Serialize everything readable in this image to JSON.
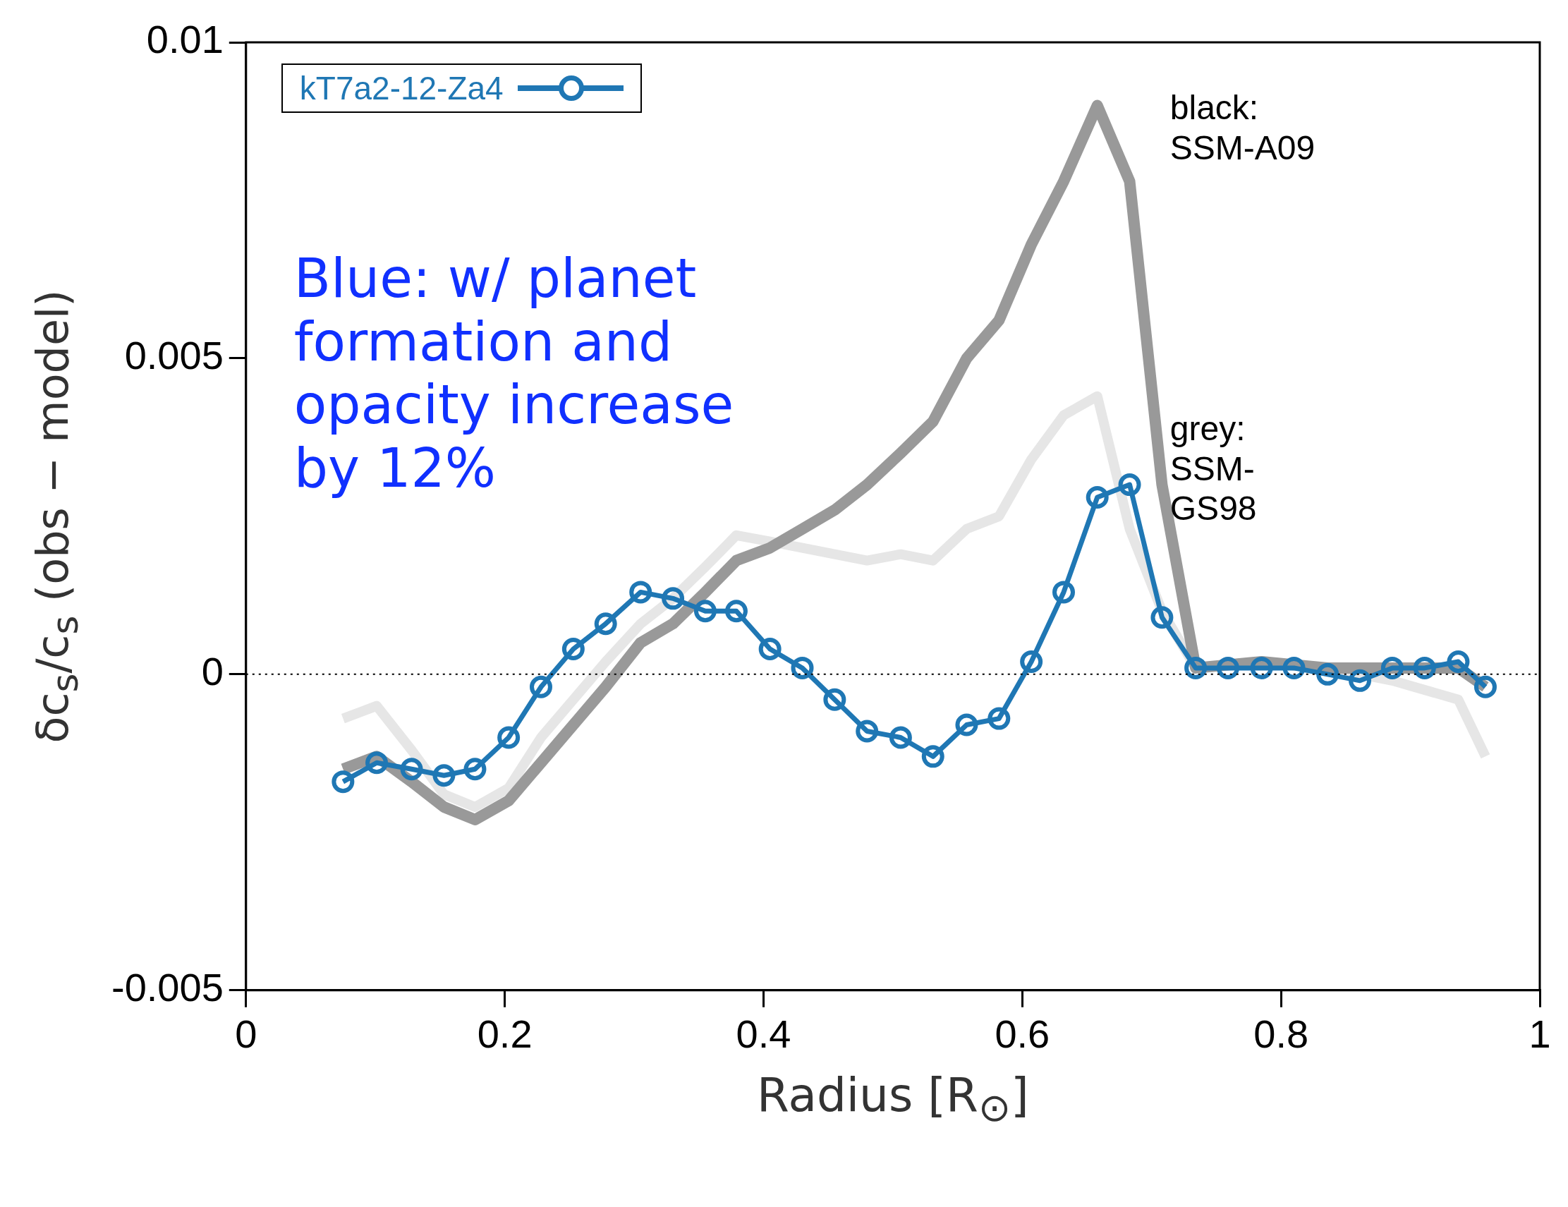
{
  "chart_data": {
    "type": "line",
    "xlabel": "Radius [R$_{⊙}$]",
    "ylabel": "δc$_{s}$/c$_{s}$ (obs − model)",
    "xlim": [
      0,
      1
    ],
    "xticks": [
      0,
      0.2,
      0.4,
      0.6,
      0.8,
      1
    ],
    "ylim": [
      -0.005,
      0.01
    ],
    "yticks": [
      -0.005,
      0,
      0.005,
      0.01
    ],
    "series": [
      {
        "color": "#e6e6e6",
        "marker": "none",
        "x": [
          0.075,
          0.101,
          0.128,
          0.153,
          0.177,
          0.203,
          0.228,
          0.253,
          0.278,
          0.305,
          0.33,
          0.355,
          0.379,
          0.405,
          0.43,
          0.455,
          0.48,
          0.506,
          0.531,
          0.557,
          0.582,
          0.607,
          0.632,
          0.658,
          0.683,
          0.708,
          0.734,
          0.785,
          0.836,
          0.886,
          0.937,
          0.958
        ],
        "values": [
          -0.0007,
          -0.0005,
          -0.0012,
          -0.0019,
          -0.0021,
          -0.0018,
          -0.001,
          -0.0004,
          0.0002,
          0.0008,
          0.0012,
          0.0017,
          0.0022,
          0.0021,
          0.002,
          0.0019,
          0.0018,
          0.0019,
          0.0018,
          0.0023,
          0.0025,
          0.0034,
          0.0041,
          0.0044,
          0.0023,
          0.001,
          0.0001,
          0.0002,
          0.0001,
          -0.0001,
          -0.0004,
          -0.0013
        ]
      },
      {
        "color": "#999999",
        "marker": "none",
        "x": [
          0.075,
          0.101,
          0.128,
          0.153,
          0.177,
          0.203,
          0.228,
          0.253,
          0.278,
          0.305,
          0.33,
          0.355,
          0.379,
          0.405,
          0.43,
          0.455,
          0.48,
          0.506,
          0.531,
          0.557,
          0.582,
          0.607,
          0.632,
          0.658,
          0.683,
          0.708,
          0.734,
          0.785,
          0.836,
          0.886,
          0.937,
          0.958
        ],
        "values": [
          -0.0015,
          -0.0013,
          -0.0017,
          -0.0021,
          -0.0023,
          -0.002,
          -0.0014,
          -0.0008,
          -0.0002,
          0.0005,
          0.0008,
          0.0013,
          0.0018,
          0.002,
          0.0023,
          0.0026,
          0.003,
          0.0035,
          0.004,
          0.005,
          0.0056,
          0.0068,
          0.0078,
          0.009,
          0.0078,
          0.003,
          0.0001,
          0.0002,
          0.0001,
          0.0001,
          0.0001,
          -0.0002
        ]
      },
      {
        "name": "kT7a2-12-Za4",
        "color": "#1f77b4",
        "marker": "circle",
        "x": [
          0.075,
          0.101,
          0.128,
          0.153,
          0.177,
          0.203,
          0.228,
          0.253,
          0.278,
          0.305,
          0.33,
          0.355,
          0.379,
          0.405,
          0.43,
          0.455,
          0.48,
          0.506,
          0.531,
          0.557,
          0.582,
          0.607,
          0.632,
          0.658,
          0.683,
          0.708,
          0.734,
          0.759,
          0.785,
          0.81,
          0.836,
          0.861,
          0.886,
          0.911,
          0.937,
          0.958
        ],
        "values": [
          -0.0017,
          -0.0014,
          -0.0015,
          -0.0016,
          -0.0015,
          -0.001,
          -0.0002,
          0.0004,
          0.0008,
          0.0013,
          0.0012,
          0.001,
          0.001,
          0.0004,
          0.0001,
          -0.0004,
          -0.0009,
          -0.001,
          -0.0013,
          -0.0008,
          -0.0007,
          0.0002,
          0.0013,
          0.0028,
          0.003,
          0.0009,
          0.0001,
          0.0001,
          0.0001,
          0.0001,
          0,
          -0.0001,
          0.0001,
          0.0001,
          0.0002,
          -0.0002
        ]
      }
    ],
    "ref_lines": [
      {
        "axis": "y",
        "value": 0,
        "color": "#000000",
        "line_style": "dotted"
      }
    ],
    "legend": "top left",
    "grid": false,
    "annotations": [
      "Blue: w/ planet formation and opacity increase by 12%",
      "black: SSM-A09",
      "grey: SSM-GS98"
    ]
  }
}
